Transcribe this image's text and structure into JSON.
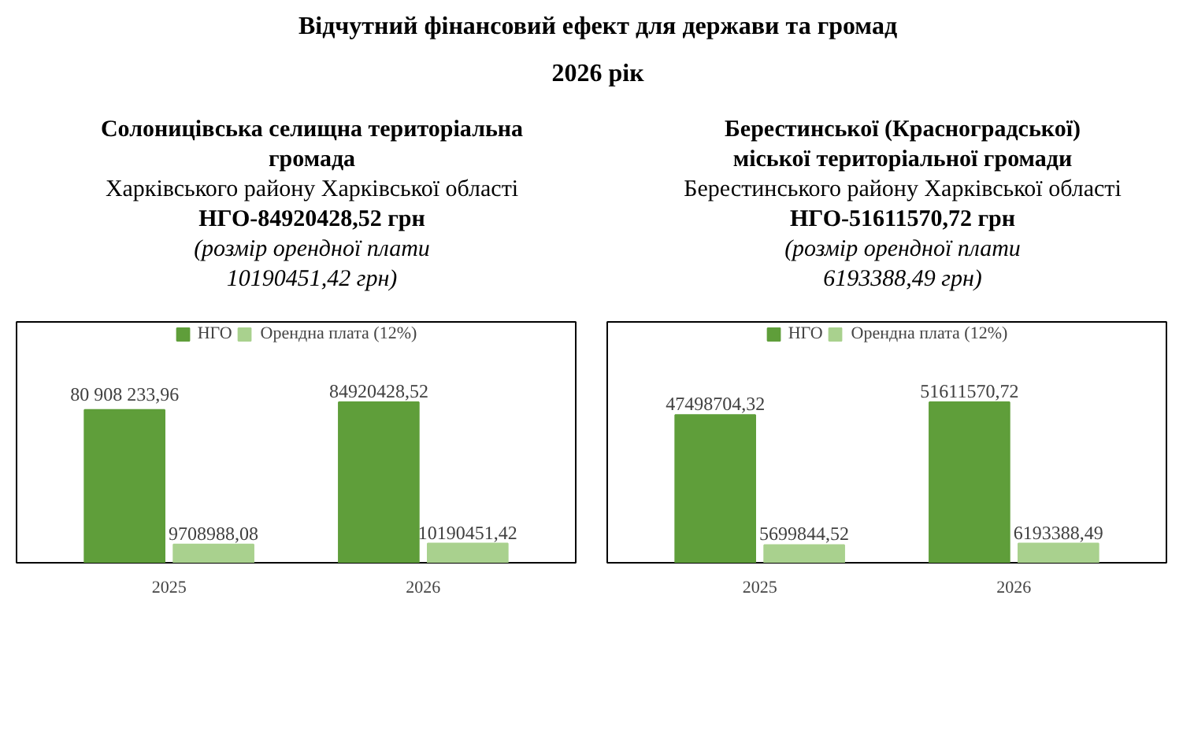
{
  "chart_data": [
    {
      "type": "other",
      "title": "Відчутний фінансовий ефект для держави та громад",
      "subtitle": "2026 рік"
    },
    {
      "type": "bar",
      "title": "Солоницівська селищна територіальна громада",
      "subtitle": "Харківського району Харківської області",
      "annotations": [
        "НГО-84920428,52 грн",
        "(розмір орендної плати 10190451,42 грн)"
      ],
      "categories": [
        "2025",
        "2026"
      ],
      "legend": "top",
      "series": [
        {
          "name": "НГО",
          "color": "#5f9e3a",
          "values": [
            80908233.96,
            84920428.52
          ],
          "value_labels": [
            "80 908 233,96",
            "84920428,52"
          ]
        },
        {
          "name": "Орендна плата (12%)",
          "color": "#a9d18e",
          "values": [
            9708988.08,
            10190451.42
          ],
          "value_labels": [
            "9708988,08",
            "10190451,42"
          ]
        }
      ]
    },
    {
      "type": "bar",
      "title": "Берестинської (Красноградської) міської територіальної громади",
      "subtitle": "Берестинського району Харківської області",
      "annotations": [
        "НГО-51611570,72 грн",
        "(розмір орендної плати 6193388,49 грн)"
      ],
      "categories": [
        "2025",
        "2026"
      ],
      "legend": "top",
      "series": [
        {
          "name": "НГО",
          "color": "#5f9e3a",
          "values": [
            47498704.32,
            51611570.72
          ],
          "value_labels": [
            "47498704,32",
            "51611570,72"
          ]
        },
        {
          "name": "Орендна плата (12%)",
          "color": "#a9d18e",
          "values": [
            5699844.52,
            6193388.49
          ],
          "value_labels": [
            "5699844,52",
            "6193388,49"
          ]
        }
      ]
    }
  ]
}
